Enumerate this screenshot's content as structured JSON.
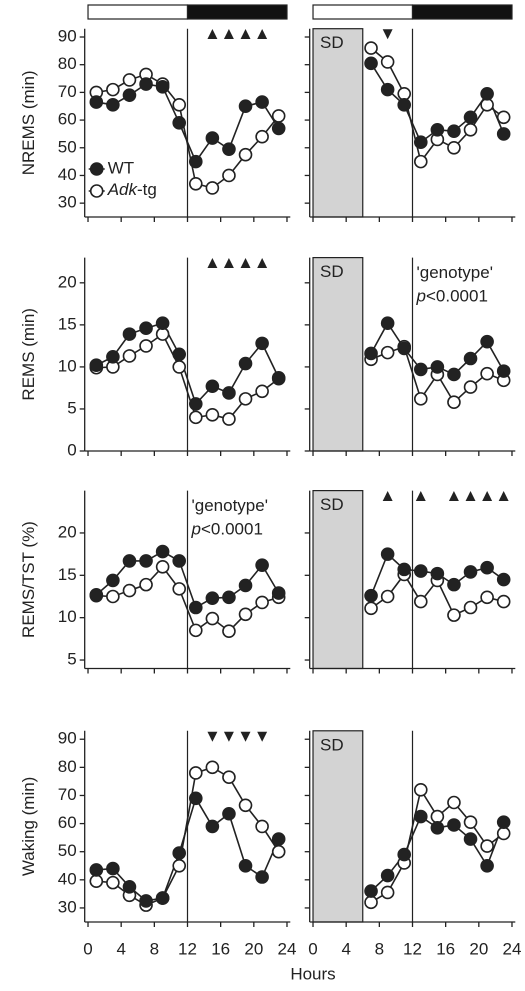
{
  "chart_data": [
    {
      "type": "line",
      "ylabel": "NREMS (min)",
      "x": [
        1,
        3,
        5,
        7,
        9,
        11,
        13,
        15,
        17,
        19,
        21,
        23
      ],
      "xlim": [
        -0.4,
        24.4
      ],
      "xticks": [
        0,
        4,
        8,
        12,
        16,
        20,
        24
      ],
      "xtick_labels": false,
      "ylim": [
        25,
        93
      ],
      "yticks": [
        30,
        40,
        50,
        60,
        70,
        80,
        90
      ],
      "ytick_labels": true,
      "vline": 12,
      "legend": "lower left",
      "light_bar": {
        "light": [
          0,
          12
        ],
        "dark": [
          12,
          24
        ]
      },
      "significance": {
        "symbol": "▲",
        "x": [
          15,
          17,
          19,
          21
        ]
      },
      "series": [
        {
          "name": "WT",
          "color": "#222222",
          "values": [
            66.5,
            65.5,
            69,
            73,
            72,
            59,
            45,
            53.5,
            49.5,
            65,
            66.5,
            57
          ]
        },
        {
          "name": "Adk-tg",
          "color": "#ffffff",
          "values": [
            70,
            71,
            74.5,
            76.5,
            73,
            65.5,
            37,
            35.5,
            40,
            47.5,
            54,
            61.5
          ]
        }
      ]
    },
    {
      "type": "line",
      "x": [
        7,
        9,
        11,
        13,
        15,
        17,
        19,
        21,
        23
      ],
      "xlim": [
        -0.4,
        24.4
      ],
      "xticks": [
        0,
        4,
        8,
        12,
        16,
        20,
        24
      ],
      "xtick_labels": false,
      "ylim": [
        25,
        93
      ],
      "yticks": [
        30,
        40,
        50,
        60,
        70,
        80,
        90
      ],
      "ytick_labels": false,
      "vline": 12,
      "light_bar": {
        "light": [
          0,
          12
        ],
        "dark": [
          12,
          24
        ]
      },
      "shaded": {
        "xlim": [
          0,
          6
        ],
        "label": "SD"
      },
      "significance": {
        "symbol": "▼",
        "x": [
          9
        ]
      },
      "series": [
        {
          "name": "WT",
          "color": "#222222",
          "values": [
            80.5,
            71,
            65.5,
            52,
            56.5,
            56,
            61,
            69.5,
            55
          ]
        },
        {
          "name": "Adk-tg",
          "color": "#ffffff",
          "values": [
            86,
            81,
            69.5,
            45,
            53,
            50,
            56.5,
            65.5,
            61
          ]
        }
      ]
    },
    {
      "type": "line",
      "ylabel": "REMS (min)",
      "x": [
        1,
        3,
        5,
        7,
        9,
        11,
        13,
        15,
        17,
        19,
        21,
        23
      ],
      "xlim": [
        -0.4,
        24.4
      ],
      "xticks": [
        0,
        4,
        8,
        12,
        16,
        20,
        24
      ],
      "xtick_labels": false,
      "ylim": [
        0,
        23
      ],
      "yticks": [
        0,
        5,
        10,
        15,
        20
      ],
      "ytick_labels": true,
      "vline": 12,
      "significance": {
        "symbol": "▲",
        "x": [
          15,
          17,
          19,
          21
        ]
      },
      "series": [
        {
          "name": "WT",
          "color": "#222222",
          "values": [
            10.2,
            11.2,
            13.9,
            14.6,
            15.2,
            11.5,
            5.6,
            7.7,
            6.9,
            10.4,
            12.8,
            8.7
          ]
        },
        {
          "name": "Adk-tg",
          "color": "#ffffff",
          "values": [
            9.9,
            10.0,
            11.3,
            12.5,
            13.9,
            10.0,
            4.0,
            4.3,
            3.8,
            6.2,
            7.1,
            8.6
          ]
        }
      ]
    },
    {
      "type": "line",
      "x": [
        7,
        9,
        11,
        13,
        15,
        17,
        19,
        21,
        23
      ],
      "xlim": [
        -0.4,
        24.4
      ],
      "xticks": [
        0,
        4,
        8,
        12,
        16,
        20,
        24
      ],
      "xtick_labels": false,
      "ylim": [
        0,
        23
      ],
      "yticks": [
        0,
        5,
        10,
        15,
        20
      ],
      "ytick_labels": false,
      "vline": 12,
      "shaded": {
        "xlim": [
          0,
          6
        ],
        "label": "SD"
      },
      "annotation": [
        "'genotype'",
        "p<0.0001"
      ],
      "series": [
        {
          "name": "WT",
          "color": "#222222",
          "values": [
            11.6,
            15.2,
            12.2,
            9.7,
            10.0,
            9.1,
            11.0,
            13.0,
            9.5
          ]
        },
        {
          "name": "Adk-tg",
          "color": "#ffffff",
          "values": [
            10.9,
            11.7,
            12.4,
            6.2,
            9.1,
            5.8,
            7.6,
            9.2,
            8.4
          ]
        }
      ]
    },
    {
      "type": "line",
      "ylabel": "REMS/TST (%)",
      "x": [
        1,
        3,
        5,
        7,
        9,
        11,
        13,
        15,
        17,
        19,
        21,
        23
      ],
      "xlim": [
        -0.4,
        24.4
      ],
      "xticks": [
        0,
        4,
        8,
        12,
        16,
        20,
        24
      ],
      "xtick_labels": false,
      "ylim": [
        4,
        25
      ],
      "yticks": [
        5,
        10,
        15,
        20
      ],
      "ytick_labels": true,
      "vline": 12,
      "annotation": [
        "'genotype'",
        "p<0.0001"
      ],
      "series": [
        {
          "name": "WT",
          "color": "#222222",
          "values": [
            12.7,
            14.4,
            16.7,
            16.7,
            17.8,
            16.7,
            11.2,
            12.3,
            12.4,
            13.8,
            16.2,
            12.9
          ]
        },
        {
          "name": "Adk-tg",
          "color": "#ffffff",
          "values": [
            12.6,
            12.5,
            13.2,
            13.9,
            16.0,
            13.4,
            8.5,
            9.9,
            8.4,
            10.4,
            11.8,
            12.4
          ]
        }
      ]
    },
    {
      "type": "line",
      "x": [
        7,
        9,
        11,
        13,
        15,
        17,
        19,
        21,
        23
      ],
      "xlim": [
        -0.4,
        24.4
      ],
      "xticks": [
        0,
        4,
        8,
        12,
        16,
        20,
        24
      ],
      "xtick_labels": false,
      "ylim": [
        4,
        25
      ],
      "yticks": [
        5,
        10,
        15,
        20
      ],
      "ytick_labels": false,
      "vline": 12,
      "shaded": {
        "xlim": [
          0,
          6
        ],
        "label": "SD"
      },
      "significance": {
        "symbol": "▲",
        "x": [
          9,
          13,
          17,
          19,
          21,
          23
        ]
      },
      "series": [
        {
          "name": "WT",
          "color": "#222222",
          "values": [
            12.6,
            17.5,
            15.7,
            15.5,
            15.2,
            13.9,
            15.4,
            15.9,
            14.5
          ]
        },
        {
          "name": "Adk-tg",
          "color": "#ffffff",
          "values": [
            11.1,
            12.5,
            15.1,
            11.9,
            14.4,
            10.3,
            11.2,
            12.4,
            11.9
          ]
        }
      ]
    },
    {
      "type": "line",
      "ylabel": "Waking (min)",
      "xlabel": "Hours",
      "x": [
        1,
        3,
        5,
        7,
        9,
        11,
        13,
        15,
        17,
        19,
        21,
        23
      ],
      "xlim": [
        -0.4,
        24.4
      ],
      "xticks": [
        0,
        4,
        8,
        12,
        16,
        20,
        24
      ],
      "xtick_labels": true,
      "ylim": [
        25,
        93
      ],
      "yticks": [
        30,
        40,
        50,
        60,
        70,
        80,
        90
      ],
      "ytick_labels": true,
      "vline": 12,
      "significance": {
        "symbol": "▼",
        "x": [
          15,
          17,
          19,
          21
        ]
      },
      "series": [
        {
          "name": "WT",
          "color": "#222222",
          "values": [
            43.5,
            44,
            37.5,
            32.5,
            33.5,
            49.5,
            69,
            59,
            63.5,
            45,
            41,
            54.5
          ]
        },
        {
          "name": "Adk-tg",
          "color": "#ffffff",
          "values": [
            39.5,
            39,
            34.5,
            31,
            33.5,
            45,
            78,
            80,
            76.5,
            66.5,
            59,
            50
          ]
        }
      ]
    },
    {
      "type": "line",
      "x": [
        7,
        9,
        11,
        13,
        15,
        17,
        19,
        21,
        23
      ],
      "xlim": [
        -0.4,
        24.4
      ],
      "xticks": [
        0,
        4,
        8,
        12,
        16,
        20,
        24
      ],
      "xtick_labels": true,
      "ylim": [
        25,
        93
      ],
      "yticks": [
        30,
        40,
        50,
        60,
        70,
        80,
        90
      ],
      "ytick_labels": false,
      "vline": 12,
      "shaded": {
        "xlim": [
          0,
          6
        ],
        "label": "SD"
      },
      "series": [
        {
          "name": "WT",
          "color": "#222222",
          "values": [
            36,
            41.5,
            49,
            62.5,
            58.5,
            59.5,
            54.5,
            45,
            60.5
          ]
        },
        {
          "name": "Adk-tg",
          "color": "#ffffff",
          "values": [
            32,
            35.5,
            46,
            72,
            62.5,
            67.5,
            60.5,
            52,
            56.5
          ]
        }
      ]
    }
  ]
}
